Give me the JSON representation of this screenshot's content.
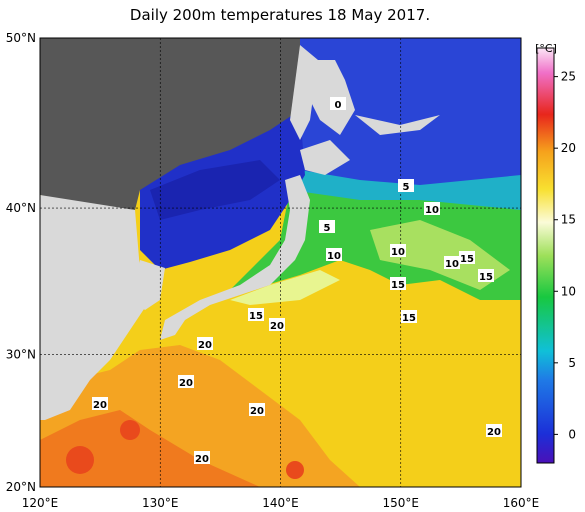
{
  "title": "Daily 200m temperatures 18 May 2017.",
  "map": {
    "xlim": [
      120,
      160
    ],
    "ylim": [
      20,
      50
    ],
    "xticks": [
      {
        "value": 120,
        "label": "120°E"
      },
      {
        "value": 130,
        "label": "130°E"
      },
      {
        "value": 140,
        "label": "140°E"
      },
      {
        "value": 150,
        "label": "150°E"
      },
      {
        "value": 160,
        "label": "160°E"
      }
    ],
    "yticks": [
      {
        "value": 20,
        "label": "20°N"
      },
      {
        "value": 30,
        "label": "30°N"
      },
      {
        "value": 40,
        "label": "40°N"
      },
      {
        "value": 50,
        "label": "50°N"
      }
    ],
    "contour_labels": [
      0,
      5,
      10,
      5,
      10,
      10,
      10,
      15,
      15,
      15,
      15,
      15,
      20,
      20,
      20,
      20,
      20,
      20,
      20
    ]
  },
  "colorbar": {
    "unit": "[°C]",
    "lim": [
      -2,
      27
    ],
    "ticks": [
      0,
      5,
      10,
      15,
      20,
      25
    ]
  }
}
